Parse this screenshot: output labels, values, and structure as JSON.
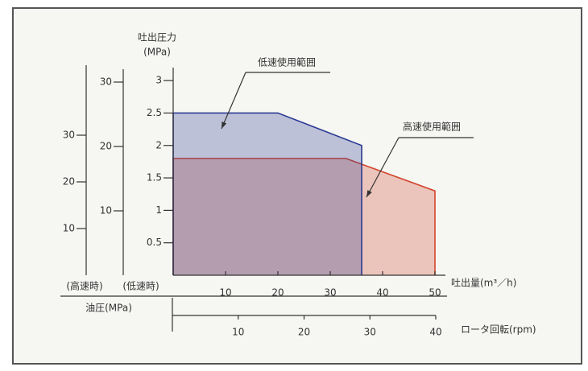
{
  "chart_data": {
    "type": "area",
    "y_label_top": "吐出圧力",
    "y_label_unit": "(MPa)",
    "x_label": "吐出量(m³／h)",
    "xlim": [
      0,
      52
    ],
    "xticks": [
      10,
      20,
      30,
      40,
      50
    ],
    "ylim": [
      0,
      3.2
    ],
    "yticks": [
      0.5,
      1.0,
      1.5,
      2.0,
      2.5,
      3.0
    ],
    "series": [
      {
        "name": "高速使用範囲",
        "color": "#d2452c",
        "x": [
          0,
          0,
          33,
          50,
          50
        ],
        "values": [
          0,
          1.8,
          1.8,
          1.3,
          0
        ]
      },
      {
        "name": "低速使用範囲",
        "color": "#2b3b92",
        "x": [
          0,
          0,
          20,
          36,
          36
        ],
        "values": [
          0,
          2.5,
          2.5,
          2.0,
          0
        ]
      }
    ],
    "pressure_label": "油圧(MPa)",
    "high_axis": {
      "label": "(高速時)",
      "ylim": [
        0,
        45
      ],
      "yticks": [
        10,
        20,
        30
      ]
    },
    "low_axis": {
      "label": "(低速時)",
      "ylim": [
        0,
        32
      ],
      "yticks": [
        10,
        20,
        30
      ]
    },
    "rpm_axis": {
      "label": "ロータ回転(rpm)",
      "xlim": [
        0,
        40
      ],
      "xticks": [
        10,
        20,
        30,
        40
      ]
    }
  }
}
